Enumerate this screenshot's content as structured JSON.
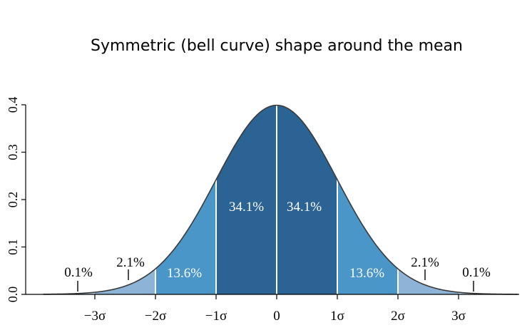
{
  "title": "Symmetric (bell curve) shape around the mean",
  "chart_data": {
    "type": "area",
    "title": "Symmetric (bell curve) shape around the mean",
    "xlabel": "",
    "ylabel": "",
    "xlim": [
      -4,
      4
    ],
    "ylim": [
      0,
      0.4
    ],
    "yticks": [
      {
        "value": 0.0,
        "label": "0.0"
      },
      {
        "value": 0.1,
        "label": "0.1"
      },
      {
        "value": 0.2,
        "label": "0.2"
      },
      {
        "value": 0.3,
        "label": "0.3"
      },
      {
        "value": 0.4,
        "label": "0.4"
      }
    ],
    "xticks": [
      {
        "value": -3,
        "label": "−3σ"
      },
      {
        "value": -2,
        "label": "−2σ"
      },
      {
        "value": -1,
        "label": "−1σ"
      },
      {
        "value": 0,
        "label": "0"
      },
      {
        "value": 1,
        "label": "1σ"
      },
      {
        "value": 2,
        "label": "2σ"
      },
      {
        "value": 3,
        "label": "3σ"
      }
    ],
    "bands": [
      {
        "from": -4,
        "to": -3,
        "percent": "0.1%",
        "color": "#c5d7e8"
      },
      {
        "from": -3,
        "to": -2,
        "percent": "2.1%",
        "color": "#8db3d6"
      },
      {
        "from": -2,
        "to": -1,
        "percent": "13.6%",
        "color": "#4b96c8"
      },
      {
        "from": -1,
        "to": 0,
        "percent": "34.1%",
        "color": "#2b6494"
      },
      {
        "from": 0,
        "to": 1,
        "percent": "34.1%",
        "color": "#2b6494"
      },
      {
        "from": 1,
        "to": 2,
        "percent": "13.6%",
        "color": "#4b96c8"
      },
      {
        "from": 2,
        "to": 3,
        "percent": "2.1%",
        "color": "#8db3d6"
      },
      {
        "from": 3,
        "to": 4,
        "percent": "0.1%",
        "color": "#c5d7e8"
      }
    ],
    "curve_color": "#3a3a3a",
    "divider_color": "#ffffff",
    "axis_color": "#000000",
    "grid": false
  }
}
